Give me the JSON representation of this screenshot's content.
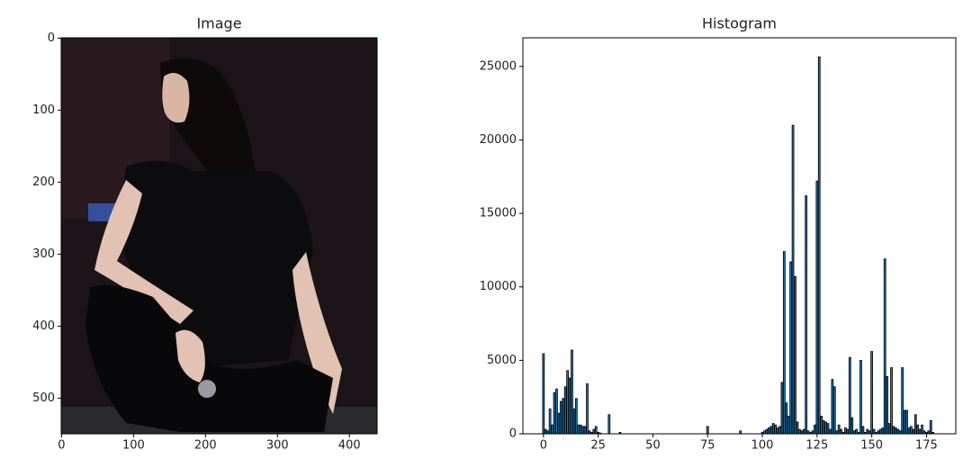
{
  "chart_data": [
    {
      "type": "image",
      "title": "Image",
      "xlim": [
        -0.5,
        438.5
      ],
      "ylim": [
        549.5,
        -0.5
      ],
      "xticks": [
        0,
        100,
        200,
        300,
        400
      ],
      "yticks": [
        0,
        100,
        200,
        300,
        400,
        500
      ]
    },
    {
      "type": "bar",
      "title": "Histogram",
      "color": "#1f77b4",
      "edgecolor": "#000000",
      "xlim": [
        -9.4,
        188.4
      ],
      "ylim": [
        0,
        26950
      ],
      "xticks": [
        0,
        25,
        50,
        75,
        100,
        125,
        150,
        175
      ],
      "yticks": [
        0,
        5000,
        10000,
        15000,
        20000,
        25000
      ],
      "x": [
        0,
        1,
        2,
        3,
        4,
        5,
        6,
        7,
        8,
        9,
        10,
        11,
        12,
        13,
        14,
        15,
        16,
        17,
        18,
        19,
        20,
        21,
        22,
        23,
        24,
        25,
        26,
        27,
        28,
        29,
        30,
        31,
        32,
        33,
        34,
        35,
        36,
        37,
        38,
        39,
        40,
        41,
        42,
        43,
        44,
        45,
        46,
        47,
        48,
        49,
        50,
        51,
        52,
        53,
        54,
        55,
        56,
        57,
        58,
        59,
        60,
        61,
        62,
        63,
        64,
        65,
        66,
        67,
        68,
        69,
        70,
        71,
        72,
        73,
        74,
        75,
        76,
        77,
        78,
        79,
        80,
        81,
        82,
        83,
        84,
        85,
        86,
        87,
        88,
        89,
        90,
        91,
        92,
        93,
        94,
        95,
        96,
        97,
        98,
        99,
        100,
        101,
        102,
        103,
        104,
        105,
        106,
        107,
        108,
        109,
        110,
        111,
        112,
        113,
        114,
        115,
        116,
        117,
        118,
        119,
        120,
        121,
        122,
        123,
        124,
        125,
        126,
        127,
        128,
        129,
        130,
        131,
        132,
        133,
        134,
        135,
        136,
        137,
        138,
        139,
        140,
        141,
        142,
        143,
        144,
        145,
        146,
        147,
        148,
        149,
        150,
        151,
        152,
        153,
        154,
        155,
        156,
        157,
        158,
        159,
        160,
        161,
        162,
        163,
        164,
        165,
        166,
        167,
        168,
        169,
        170,
        171,
        172,
        173,
        174,
        175,
        176,
        177,
        178,
        179
      ],
      "values": [
        5450,
        300,
        200,
        1700,
        600,
        2800,
        3050,
        1400,
        2200,
        2400,
        3200,
        4300,
        3800,
        5700,
        1700,
        2400,
        600,
        600,
        500,
        500,
        3400,
        200,
        100,
        300,
        500,
        100,
        50,
        0,
        0,
        0,
        1300,
        0,
        0,
        0,
        0,
        100,
        0,
        0,
        0,
        0,
        0,
        0,
        0,
        0,
        0,
        0,
        0,
        0,
        0,
        0,
        0,
        0,
        0,
        0,
        0,
        0,
        0,
        0,
        0,
        0,
        0,
        0,
        0,
        0,
        0,
        0,
        0,
        0,
        0,
        0,
        0,
        0,
        0,
        0,
        0,
        500,
        0,
        0,
        0,
        0,
        0,
        0,
        0,
        0,
        0,
        0,
        0,
        0,
        0,
        0,
        200,
        0,
        0,
        0,
        0,
        0,
        0,
        0,
        0,
        0,
        100,
        200,
        300,
        400,
        500,
        700,
        600,
        400,
        500,
        3500,
        12400,
        2100,
        1200,
        11700,
        21000,
        10700,
        800,
        300,
        200,
        300,
        16200,
        200,
        100,
        200,
        600,
        17200,
        25650,
        1200,
        900,
        800,
        700,
        300,
        3700,
        3200,
        200,
        600,
        300,
        100,
        400,
        300,
        5200,
        1100,
        200,
        300,
        100,
        5000,
        500,
        100,
        300,
        200,
        5600,
        300,
        100,
        200,
        300,
        400,
        11900,
        3900,
        700,
        4500,
        500,
        400,
        300,
        200,
        4500,
        1600,
        1600,
        400,
        500,
        300,
        1300,
        600,
        300,
        600,
        200,
        100,
        200,
        900,
        100,
        0
      ]
    }
  ]
}
